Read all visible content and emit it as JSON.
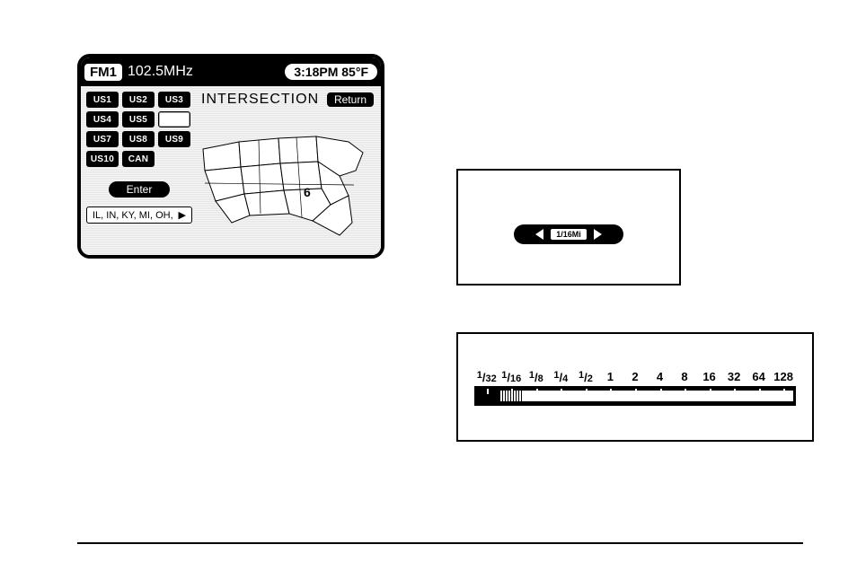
{
  "nav": {
    "band": "FM1",
    "frequency": "102.5MHz",
    "time_temp": "3:18PM 85°F",
    "title": "INTERSECTION",
    "return": "Return",
    "regions": [
      [
        "US1",
        "US2",
        "US3"
      ],
      [
        "US4",
        "US5",
        ""
      ],
      [
        "US7",
        "US8",
        "US9"
      ],
      [
        "US10",
        "CAN",
        null
      ]
    ],
    "enter": "Enter",
    "state_list": "IL, IN, KY, MI, OH,",
    "map_label": "6"
  },
  "zoom": {
    "value": "1/16Mi"
  },
  "scale": {
    "labels": [
      "1/32",
      "1/16",
      "1/8",
      "1/4",
      "1/2",
      "1",
      "2",
      "4",
      "8",
      "16",
      "32",
      "64",
      "128"
    ],
    "selected_index": 1,
    "track_color": "#000000",
    "open_color": "#ffffff"
  }
}
